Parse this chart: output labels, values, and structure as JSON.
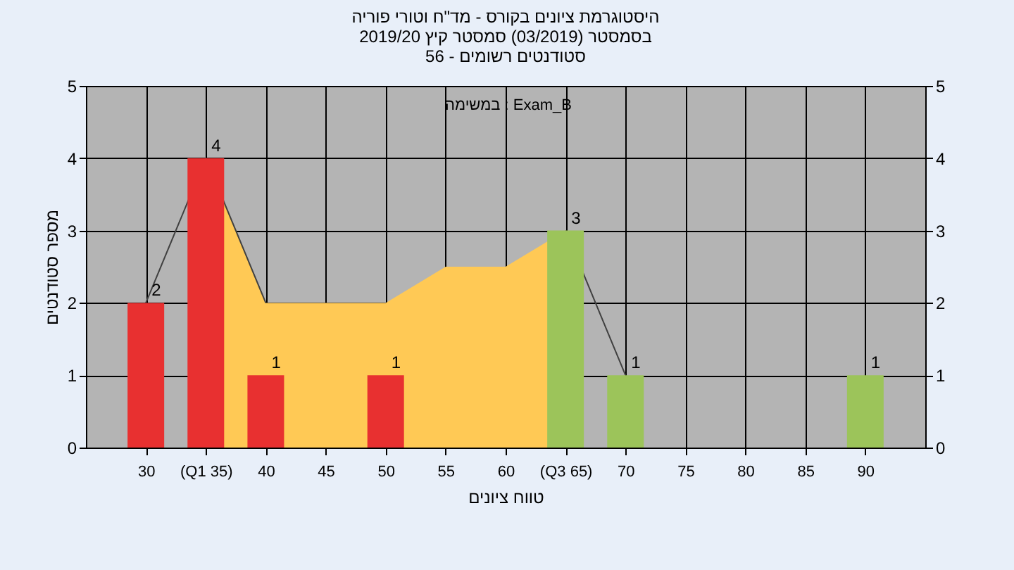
{
  "chart_data": {
    "type": "bar",
    "title": [
      "היסטוגרמת ציונים בקורס - מד\"ח וטורי פוריה",
      "בסמסטר  (03/2019)  סמסטר קיץ 2019/20",
      "סטודנטים רשומים - 56"
    ],
    "xlabel": "טווח ציונים",
    "ylabel": "מספר סטודנטים",
    "annotations": [
      "במשימה : Exam_B"
    ],
    "xlim": [
      25,
      95
    ],
    "xticks": [
      30,
      {
        "value": 35,
        "label": "(Q1 35)"
      },
      40,
      45,
      50,
      55,
      60,
      {
        "value": 65,
        "label": "(Q3 65)"
      },
      70,
      75,
      80,
      85,
      90
    ],
    "ylim": [
      0,
      5
    ],
    "yticks": [
      0,
      1,
      2,
      3,
      4,
      5
    ],
    "y2lim": [
      0,
      5
    ],
    "y2ticks": [
      0,
      1,
      2,
      3,
      4,
      5
    ],
    "grid": true,
    "series": [
      {
        "type": "area",
        "color": "#ffc955",
        "x": [
          35,
          40,
          45,
          50,
          55,
          60,
          65
        ],
        "values": [
          4,
          2,
          2,
          2,
          2.5,
          2.5,
          3
        ]
      },
      {
        "type": "line",
        "color": "#404040",
        "x": [
          30,
          35,
          40,
          45,
          50,
          55,
          60,
          65,
          70
        ],
        "values": [
          2,
          4,
          2,
          null,
          null,
          null,
          null,
          3,
          1
        ]
      },
      {
        "colors": [
          "#e83030",
          "#e83030",
          "#e83030",
          "#e83030",
          "#9cc45a",
          "#9cc45a",
          "#9cc45a"
        ],
        "x": [
          30,
          35,
          40,
          50,
          65,
          70,
          90
        ],
        "values": [
          2,
          4,
          1,
          1,
          3,
          1,
          1
        ],
        "value_labels": [
          "2",
          "4",
          "1",
          "1",
          "3",
          "1",
          "1"
        ]
      }
    ]
  }
}
